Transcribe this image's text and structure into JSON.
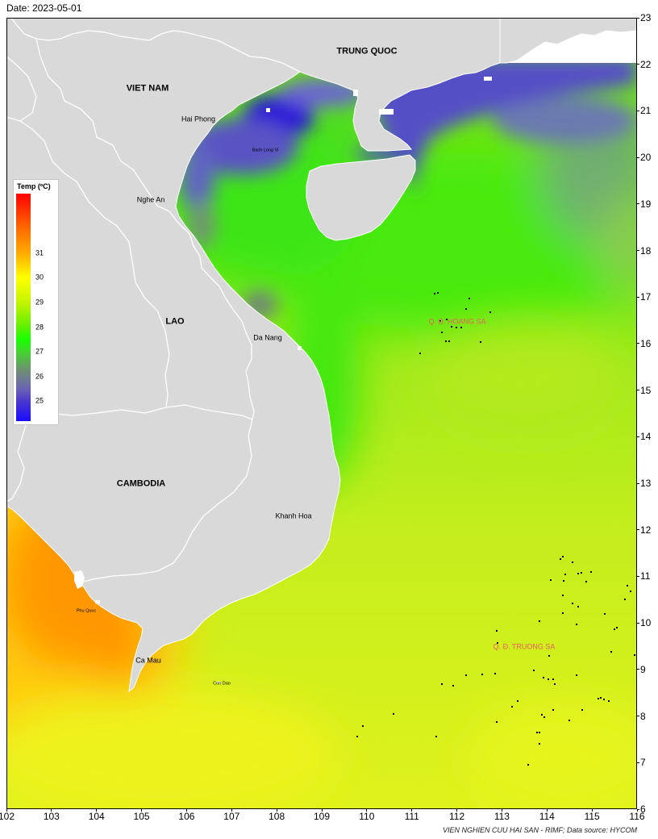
{
  "header": {
    "date_label": "Date: 2023-05-01"
  },
  "map": {
    "lon_range": [
      102,
      116
    ],
    "lat_range": [
      6,
      23
    ],
    "lon_ticks": [
      102,
      103,
      104,
      105,
      106,
      107,
      108,
      109,
      110,
      111,
      112,
      113,
      114,
      115,
      116
    ],
    "lat_ticks": [
      6,
      7,
      8,
      9,
      10,
      11,
      12,
      13,
      14,
      15,
      16,
      17,
      18,
      19,
      20,
      21,
      22,
      23
    ],
    "labels": {
      "trung_quoc": "TRUNG QUOC",
      "viet_nam": "VIET NAM",
      "hai_phong": "Hai Phong",
      "bach_long_vi": "Bach Long Vi",
      "nghe_an": "Nghe An",
      "lao": "LAO",
      "da_nang": "Da Nang",
      "hoang_sa": "Q. Đ. HOANG SA",
      "cambodia": "CAMBODIA",
      "khanh_hoa": "Khanh Hoa",
      "phu_quoc": "Phu Quoc",
      "ca_mau": "Ca Mau",
      "con_dao": "Con Dao",
      "truong_sa": "Q. Đ. TRUONG SA"
    }
  },
  "legend": {
    "title": "Temp (ºC)",
    "ticks": [
      31,
      30,
      29,
      28,
      27,
      26,
      25
    ],
    "min": 24.2,
    "max": 33.4,
    "colormap": [
      {
        "t": 33.4,
        "color": "#ff0000"
      },
      {
        "t": 32.0,
        "color": "#ff6a00"
      },
      {
        "t": 31.0,
        "color": "#ffaa00"
      },
      {
        "t": 30.0,
        "color": "#ffff00"
      },
      {
        "t": 29.0,
        "color": "#c4f400"
      },
      {
        "t": 28.0,
        "color": "#5ef000"
      },
      {
        "t": 27.5,
        "color": "#1aff00"
      },
      {
        "t": 27.0,
        "color": "#44d430"
      },
      {
        "t": 26.2,
        "color": "#708a78"
      },
      {
        "t": 25.5,
        "color": "#6a64b4"
      },
      {
        "t": 25.0,
        "color": "#4a36cc"
      },
      {
        "t": 24.2,
        "color": "#1a0cff"
      }
    ]
  },
  "colors": {
    "land": "#d9d9d9",
    "borders": "#ffffff",
    "no_data": "#ffffff",
    "island_group_label": "#e8625f"
  },
  "credit": "VIEN NGHIEN CUU HAI SAN - RIMF; Data source: HYCOM"
}
